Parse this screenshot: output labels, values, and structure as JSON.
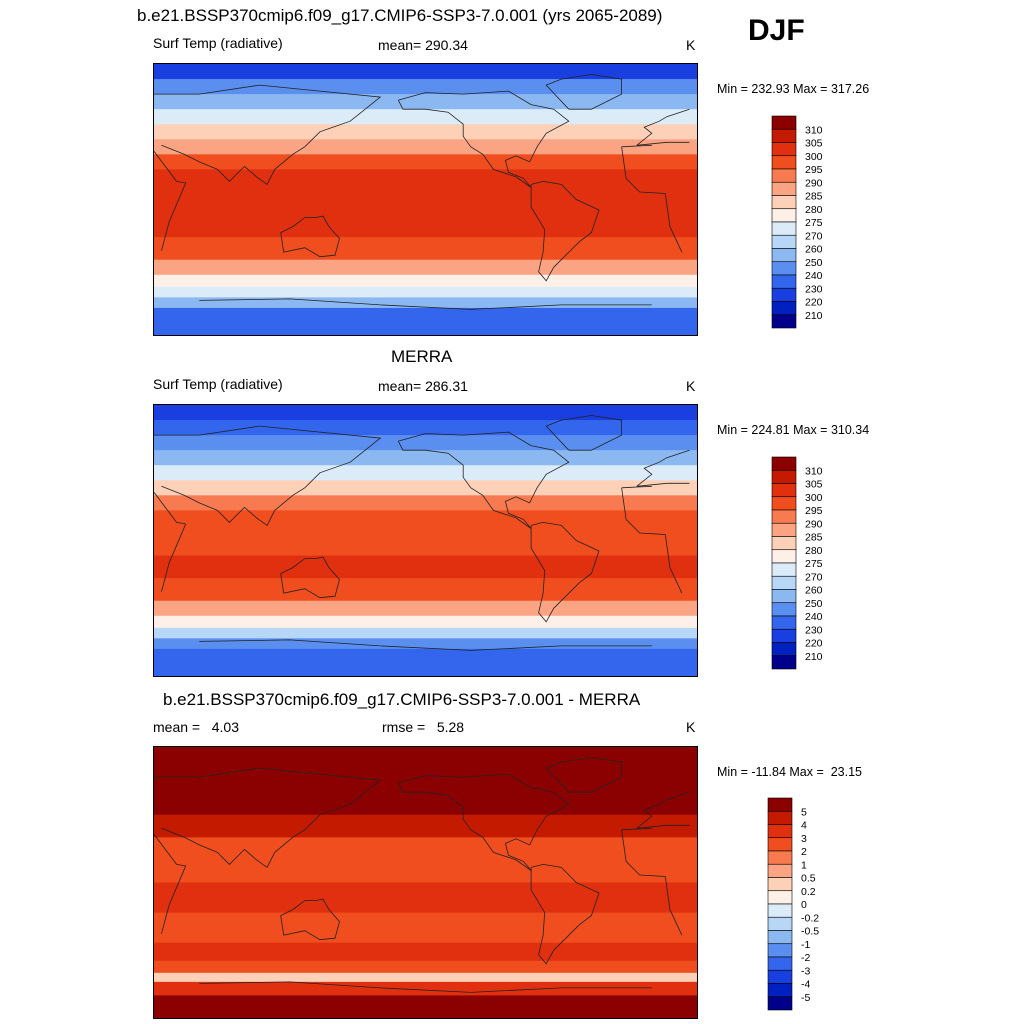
{
  "season": "DJF",
  "palettes": {
    "temp": [
      "#8b0000",
      "#c41a00",
      "#e03010",
      "#f04e1e",
      "#f77a50",
      "#fba484",
      "#fdd0b8",
      "#fdf0e8",
      "#dcebf8",
      "#b8d6f5",
      "#8cb8f2",
      "#5a8ff0",
      "#3366ec",
      "#1a3fe0",
      "#0020c0",
      "#00008b"
    ],
    "diff": [
      "#8b0000",
      "#c41a00",
      "#e03010",
      "#f04e1e",
      "#f77a50",
      "#fba484",
      "#fdd0b8",
      "#fdf0e8",
      "#dcebf8",
      "#b8d6f5",
      "#8cb8f2",
      "#5a8ff0",
      "#3366ec",
      "#1a3fe0",
      "#0020c0",
      "#00008b"
    ]
  },
  "panels": [
    {
      "title": "b.e21.BSSP370cmip6.f09_g17.CMIP6-SSP3-7.0.001 (yrs 2065-2089)",
      "left_label": "Surf Temp (radiative)",
      "center_label": "mean= 290.34",
      "units": "K",
      "minmax": "Min = 232.93 Max = 317.26",
      "palette": "temp",
      "colorbar_labels": [
        "310",
        "305",
        "300",
        "295",
        "290",
        "285",
        "280",
        "275",
        "270",
        "260",
        "250",
        "240",
        "230",
        "220",
        "210"
      ],
      "bands": [
        {
          "lat": 90,
          "color": 13
        },
        {
          "lat": 80,
          "color": 11
        },
        {
          "lat": 70,
          "color": 10
        },
        {
          "lat": 60,
          "color": 8
        },
        {
          "lat": 50,
          "color": 6
        },
        {
          "lat": 40,
          "color": 5
        },
        {
          "lat": 30,
          "color": 3
        },
        {
          "lat": 20,
          "color": 2
        },
        {
          "lat": -10,
          "color": 2
        },
        {
          "lat": -25,
          "color": 3
        },
        {
          "lat": -40,
          "color": 5
        },
        {
          "lat": -50,
          "color": 7
        },
        {
          "lat": -58,
          "color": 8
        },
        {
          "lat": -65,
          "color": 10
        },
        {
          "lat": -72,
          "color": 12
        },
        {
          "lat": -90,
          "color": 13
        }
      ]
    },
    {
      "title": "MERRA",
      "left_label": "Surf Temp (radiative)",
      "center_label": "mean= 286.31",
      "units": "K",
      "minmax": "Min = 224.81 Max = 310.34",
      "palette": "temp",
      "colorbar_labels": [
        "310",
        "305",
        "300",
        "295",
        "290",
        "285",
        "280",
        "275",
        "270",
        "260",
        "250",
        "240",
        "230",
        "220",
        "210"
      ],
      "bands": [
        {
          "lat": 90,
          "color": 13
        },
        {
          "lat": 80,
          "color": 12
        },
        {
          "lat": 70,
          "color": 11
        },
        {
          "lat": 60,
          "color": 10
        },
        {
          "lat": 50,
          "color": 8
        },
        {
          "lat": 40,
          "color": 6
        },
        {
          "lat": 30,
          "color": 4
        },
        {
          "lat": 20,
          "color": 3
        },
        {
          "lat": -10,
          "color": 2
        },
        {
          "lat": -25,
          "color": 3
        },
        {
          "lat": -40,
          "color": 5
        },
        {
          "lat": -50,
          "color": 7
        },
        {
          "lat": -58,
          "color": 9
        },
        {
          "lat": -65,
          "color": 11
        },
        {
          "lat": -72,
          "color": 12
        },
        {
          "lat": -90,
          "color": 14
        }
      ]
    },
    {
      "title": "b.e21.BSSP370cmip6.f09_g17.CMIP6-SSP3-7.0.001 - MERRA",
      "left_label": "mean =   4.03",
      "center_label": "rmse =   5.28",
      "units": "K",
      "minmax": "Min = -11.84 Max =  23.15",
      "palette": "diff",
      "colorbar_labels": [
        "5",
        "4",
        "3",
        "2",
        "1",
        "0.5",
        "0.2",
        "0",
        "-0.2",
        "-0.5",
        "-1",
        "-2",
        "-3",
        "-4",
        "-5"
      ],
      "bands": [
        {
          "lat": 90,
          "color": 0
        },
        {
          "lat": 60,
          "color": 0
        },
        {
          "lat": 45,
          "color": 1
        },
        {
          "lat": 30,
          "color": 3
        },
        {
          "lat": 15,
          "color": 3
        },
        {
          "lat": 0,
          "color": 2
        },
        {
          "lat": -20,
          "color": 3
        },
        {
          "lat": -40,
          "color": 2
        },
        {
          "lat": -52,
          "color": 3
        },
        {
          "lat": -60,
          "color": 6
        },
        {
          "lat": -66,
          "color": 2
        },
        {
          "lat": -75,
          "color": 0
        },
        {
          "lat": -90,
          "color": 0
        }
      ]
    }
  ]
}
